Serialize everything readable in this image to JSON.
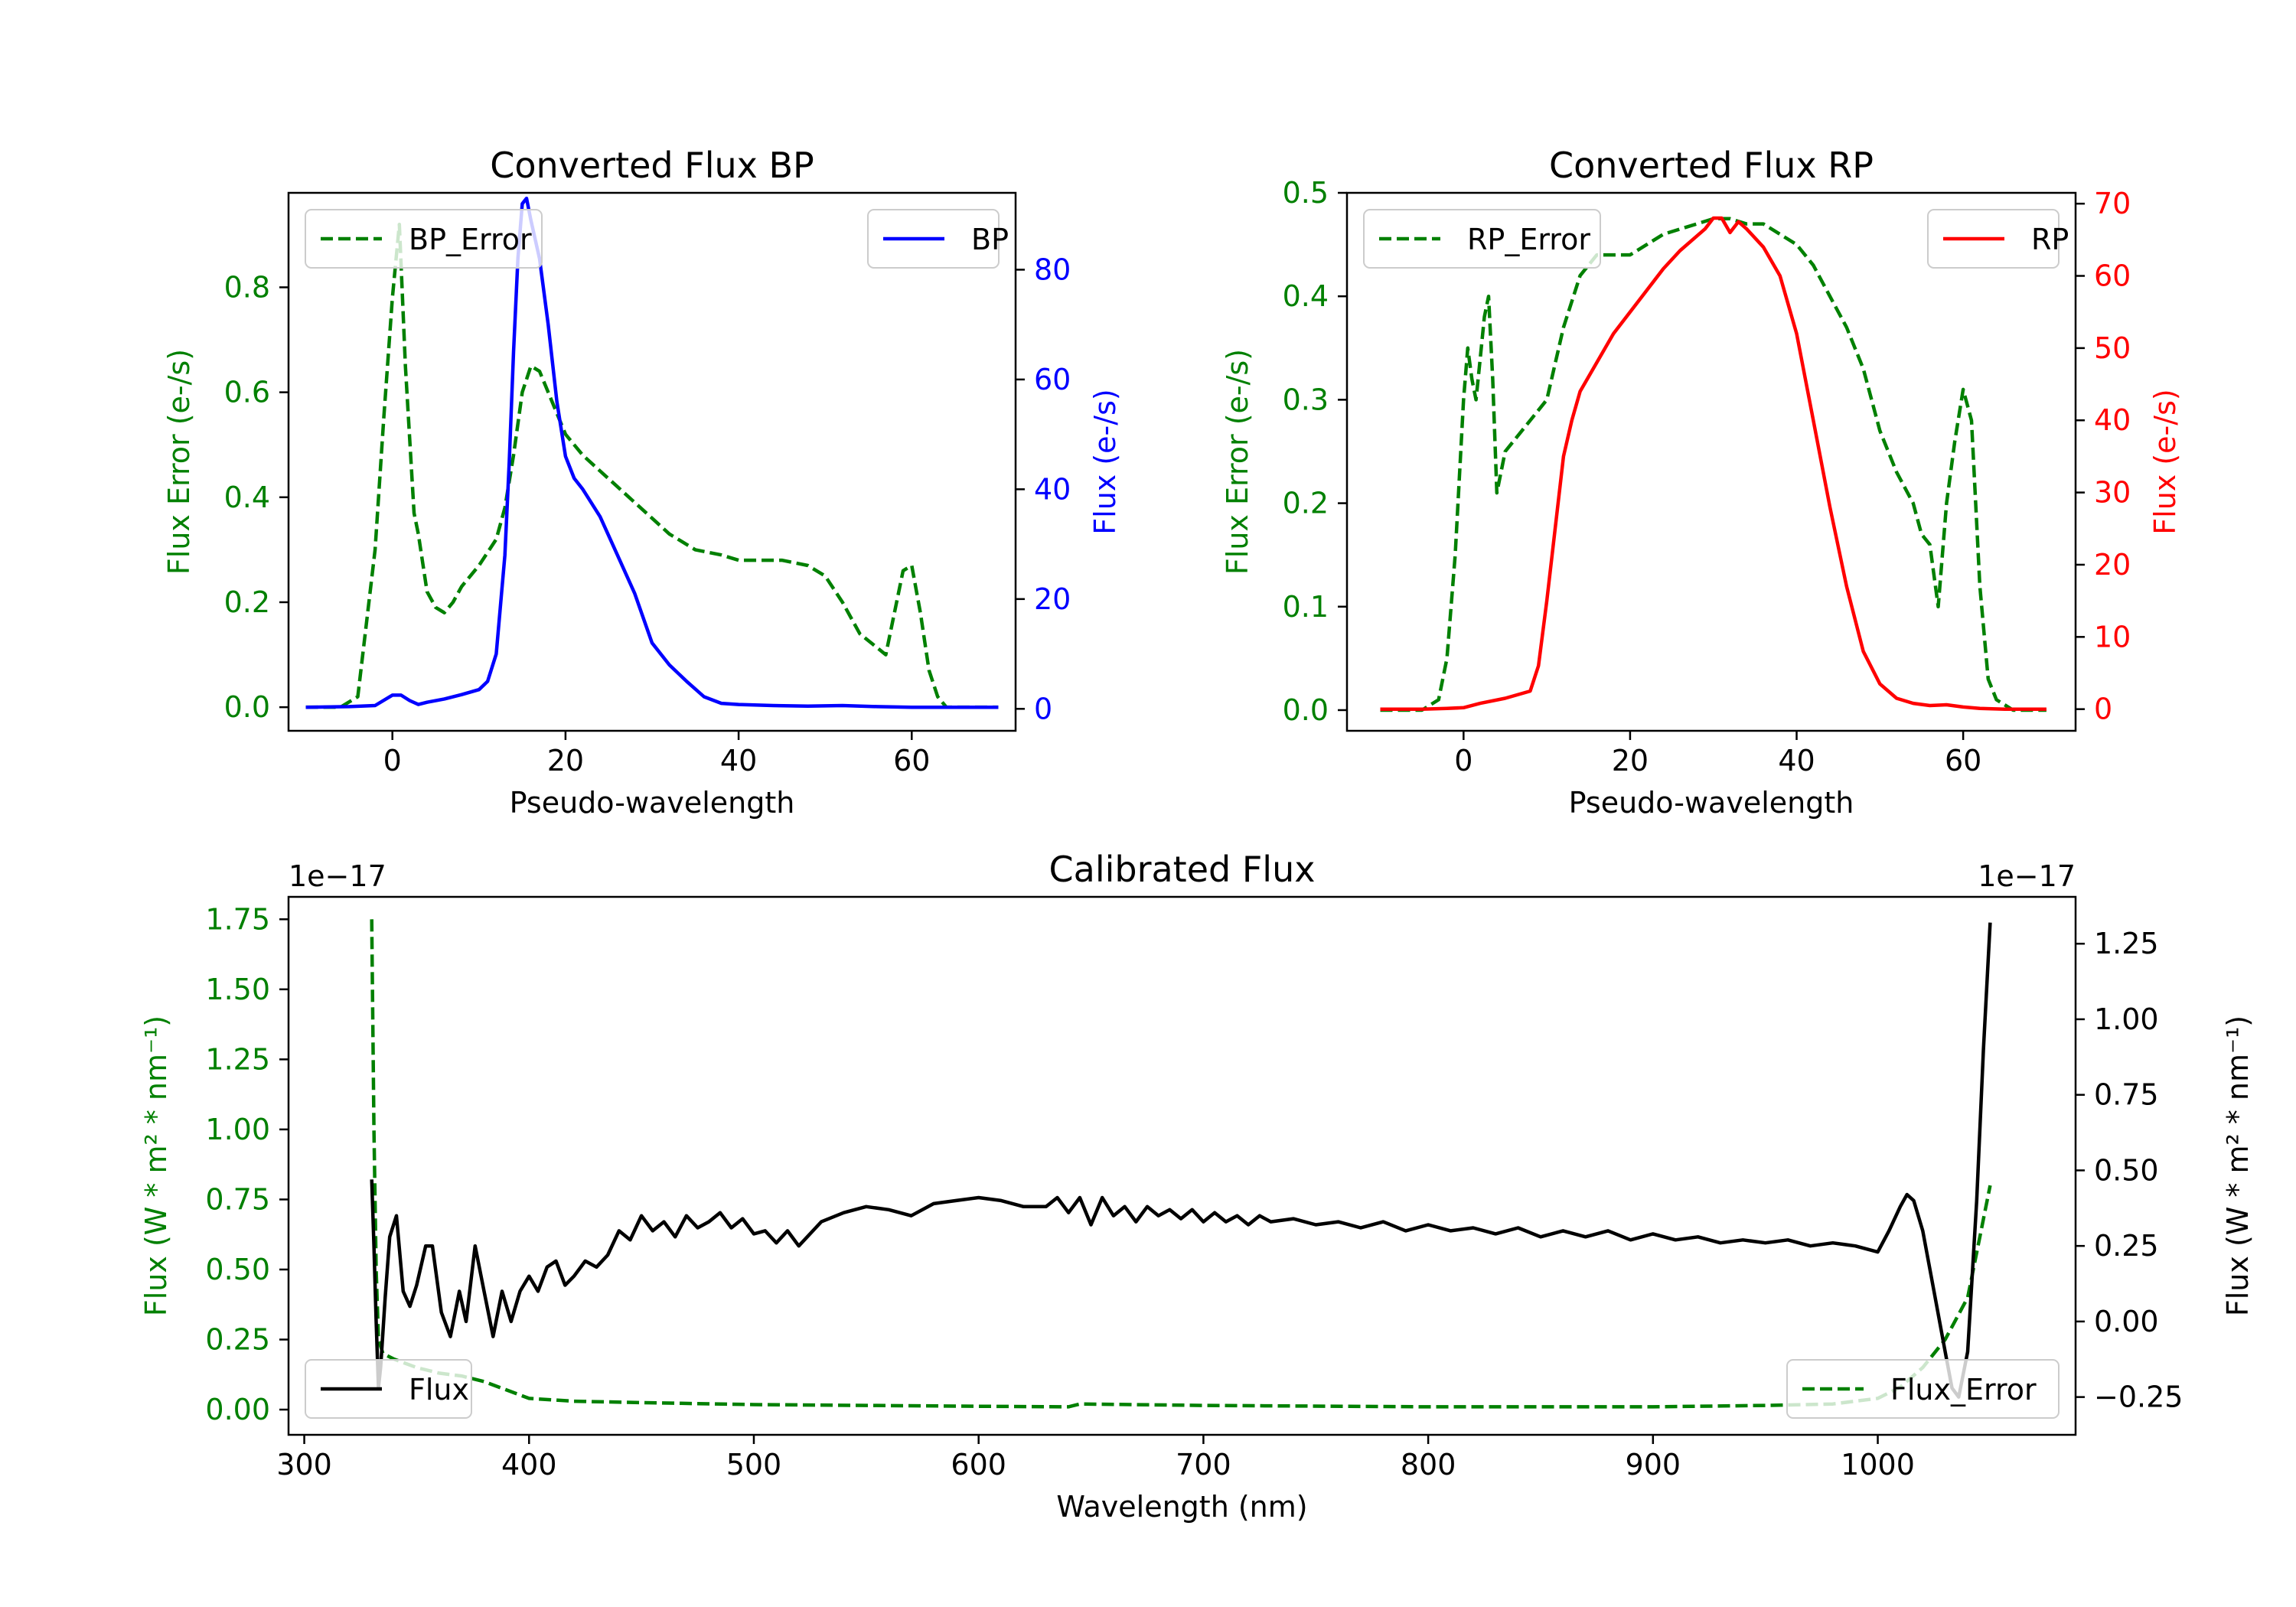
{
  "colors": {
    "flux_error": "#008000",
    "bp": "#0000ff",
    "rp": "#ff0000",
    "flux": "#000000",
    "axis": "#000000"
  },
  "chart_data": [
    {
      "id": "bp",
      "type": "line",
      "title": "Converted Flux BP",
      "xlabel": "Pseudo-wavelength",
      "xlim": [
        -12,
        72
      ],
      "xticks": [
        0,
        20,
        40,
        60
      ],
      "xtick_labels": [
        "0",
        "20",
        "40",
        "60"
      ],
      "left_axis": {
        "label": "Flux Error (e-/s)",
        "ylim": [
          -0.045,
          0.98
        ],
        "ticks": [
          0.0,
          0.2,
          0.4,
          0.6,
          0.8
        ],
        "tick_labels": [
          "0.0",
          "0.2",
          "0.4",
          "0.6",
          "0.8"
        ],
        "color": "#008000"
      },
      "right_axis": {
        "label": "Flux (e-/s)",
        "ylim": [
          -4,
          94
        ],
        "ticks": [
          0,
          20,
          40,
          60,
          80
        ],
        "tick_labels": [
          "0",
          "20",
          "40",
          "60",
          "80"
        ],
        "color": "#0000ff"
      },
      "series": [
        {
          "name": "BP_Error",
          "axis": "left",
          "style": "dashed",
          "color": "#008000",
          "legend": "BP_Error",
          "legend_pos": "upper-left",
          "x": [
            -10,
            -6,
            -4,
            -2,
            -1,
            0,
            0.8,
            1.5,
            2.5,
            3,
            4,
            5,
            6,
            7,
            8,
            10,
            12,
            13,
            14,
            15,
            16,
            17,
            18,
            20,
            22,
            24,
            26,
            28,
            30,
            32,
            35,
            38,
            40,
            43,
            45,
            48,
            50,
            52,
            54,
            57,
            58,
            59,
            60,
            61,
            62,
            63,
            64,
            66,
            70
          ],
          "y": [
            0.0,
            0.0,
            0.02,
            0.3,
            0.55,
            0.78,
            0.92,
            0.65,
            0.37,
            0.33,
            0.22,
            0.19,
            0.18,
            0.2,
            0.23,
            0.27,
            0.32,
            0.38,
            0.48,
            0.6,
            0.65,
            0.64,
            0.6,
            0.52,
            0.48,
            0.45,
            0.42,
            0.39,
            0.36,
            0.33,
            0.3,
            0.29,
            0.28,
            0.28,
            0.28,
            0.27,
            0.25,
            0.2,
            0.14,
            0.1,
            0.18,
            0.26,
            0.27,
            0.18,
            0.07,
            0.02,
            0.0,
            0.0,
            0.0
          ]
        },
        {
          "name": "BP",
          "axis": "right",
          "style": "solid",
          "color": "#0000ff",
          "legend": "BP",
          "legend_pos": "upper-right",
          "x": [
            -10,
            -5,
            -2,
            0,
            1,
            2,
            3,
            4,
            6,
            8,
            10,
            11,
            12,
            13,
            13.5,
            14,
            14.5,
            15,
            15.5,
            16,
            17,
            18,
            19,
            20,
            21,
            22,
            24,
            26,
            28,
            30,
            32,
            34,
            36,
            38,
            40,
            44,
            48,
            52,
            56,
            60,
            64,
            70
          ],
          "y": [
            0.3,
            0.4,
            0.6,
            2.5,
            2.5,
            1.5,
            0.8,
            1.2,
            1.8,
            2.6,
            3.5,
            5,
            10,
            28,
            45,
            65,
            82,
            92,
            93,
            89,
            82,
            70,
            56,
            46,
            42,
            40,
            35,
            28,
            21,
            12,
            8,
            5,
            2.2,
            1.0,
            0.8,
            0.6,
            0.5,
            0.6,
            0.4,
            0.3,
            0.3,
            0.3
          ]
        }
      ]
    },
    {
      "id": "rp",
      "type": "line",
      "title": "Converted Flux RP",
      "xlabel": "Pseudo-wavelength",
      "xlim": [
        -14,
        73.5
      ],
      "xticks": [
        0,
        20,
        40,
        60
      ],
      "xtick_labels": [
        "0",
        "20",
        "40",
        "60"
      ],
      "left_axis": {
        "label": "Flux Error (e-/s)",
        "ylim": [
          -0.02,
          0.5
        ],
        "ticks": [
          0.0,
          0.1,
          0.2,
          0.3,
          0.4,
          0.5
        ],
        "tick_labels": [
          "0.0",
          "0.1",
          "0.2",
          "0.3",
          "0.4",
          "0.5"
        ],
        "color": "#008000"
      },
      "right_axis": {
        "label": "Flux (e-/s)",
        "ylim": [
          -3,
          71.5
        ],
        "ticks": [
          0,
          10,
          20,
          30,
          40,
          50,
          60,
          70
        ],
        "tick_labels": [
          "0",
          "10",
          "20",
          "30",
          "40",
          "50",
          "60",
          "70"
        ],
        "color": "#ff0000"
      },
      "series": [
        {
          "name": "RP_Error",
          "axis": "left",
          "style": "dashed",
          "color": "#008000",
          "legend": "RP_Error",
          "legend_pos": "upper-left",
          "x": [
            -10,
            -5,
            -3,
            -2,
            -1,
            0,
            0.5,
            1,
            1.5,
            2,
            2.5,
            3,
            3.5,
            4,
            5,
            6,
            8,
            10,
            12,
            14,
            16,
            18,
            20,
            22,
            24,
            26,
            28,
            30,
            32,
            34,
            36,
            38,
            40,
            42,
            44,
            46,
            48,
            50,
            52,
            54,
            55,
            56,
            57,
            58,
            59,
            60,
            61,
            62,
            63,
            64,
            66,
            70
          ],
          "y": [
            0.0,
            0.0,
            0.01,
            0.05,
            0.15,
            0.3,
            0.35,
            0.32,
            0.3,
            0.34,
            0.38,
            0.4,
            0.32,
            0.21,
            0.25,
            0.26,
            0.28,
            0.3,
            0.37,
            0.42,
            0.44,
            0.44,
            0.44,
            0.45,
            0.46,
            0.465,
            0.47,
            0.475,
            0.475,
            0.47,
            0.47,
            0.46,
            0.45,
            0.43,
            0.4,
            0.37,
            0.33,
            0.27,
            0.23,
            0.2,
            0.17,
            0.16,
            0.1,
            0.2,
            0.26,
            0.31,
            0.28,
            0.12,
            0.03,
            0.01,
            0.0,
            0.0
          ]
        },
        {
          "name": "RP",
          "axis": "right",
          "style": "solid",
          "color": "#ff0000",
          "legend": "RP",
          "legend_pos": "upper-right",
          "x": [
            -10,
            -5,
            -2,
            0,
            2,
            5,
            8,
            9,
            10,
            11,
            12,
            13,
            14,
            16,
            18,
            20,
            22,
            24,
            26,
            28,
            29,
            30,
            31,
            32,
            33,
            34,
            36,
            38,
            40,
            42,
            44,
            46,
            48,
            50,
            52,
            54,
            56,
            58,
            60,
            62,
            65,
            70
          ],
          "y": [
            0.0,
            0.0,
            0.1,
            0.2,
            0.8,
            1.5,
            2.5,
            6,
            15,
            25,
            35,
            40,
            44,
            48,
            52,
            55,
            58,
            61,
            63.5,
            65.5,
            66.5,
            68,
            68,
            66,
            67.5,
            66.5,
            64,
            60,
            52,
            40,
            28,
            17,
            8,
            3.5,
            1.5,
            0.8,
            0.5,
            0.6,
            0.3,
            0.1,
            0.0,
            0.0
          ]
        }
      ]
    },
    {
      "id": "calibrated",
      "type": "line",
      "title": "Calibrated Flux",
      "xlabel": "Wavelength (nm)",
      "xlim": [
        293,
        1088
      ],
      "xticks": [
        300,
        400,
        500,
        600,
        700,
        800,
        900,
        1000
      ],
      "xtick_labels": [
        "300",
        "400",
        "500",
        "600",
        "700",
        "800",
        "900",
        "1000"
      ],
      "left_axis": {
        "label": "Flux (W * m² * nm⁻¹)",
        "offset_text": "1e−17",
        "ylim": [
          -0.09,
          1.83
        ],
        "ticks": [
          0.0,
          0.25,
          0.5,
          0.75,
          1.0,
          1.25,
          1.5,
          1.75
        ],
        "tick_labels": [
          "0.00",
          "0.25",
          "0.50",
          "0.75",
          "1.00",
          "1.25",
          "1.50",
          "1.75"
        ],
        "color": "#008000"
      },
      "right_axis": {
        "label": "Flux (W * m² * nm⁻¹)",
        "offset_text": "1e−17",
        "ylim": [
          -0.375,
          1.405
        ],
        "ticks": [
          -0.25,
          0.0,
          0.25,
          0.5,
          0.75,
          1.0,
          1.25
        ],
        "tick_labels": [
          "−0.25",
          "0.00",
          "0.25",
          "0.50",
          "0.75",
          "1.00",
          "1.25"
        ],
        "color": "#000000"
      },
      "series": [
        {
          "name": "Flux_Error",
          "axis": "left",
          "style": "dashed",
          "color": "#008000",
          "legend": "Flux_Error",
          "legend_pos": "lower-right",
          "x": [
            330,
            331,
            332,
            333,
            335,
            340,
            350,
            360,
            370,
            380,
            390,
            400,
            420,
            450,
            500,
            550,
            600,
            640,
            645,
            700,
            800,
            900,
            950,
            980,
            1000,
            1010,
            1020,
            1030,
            1040,
            1045,
            1050
          ],
          "y": [
            1.75,
            1.0,
            0.5,
            0.25,
            0.2,
            0.18,
            0.15,
            0.13,
            0.12,
            0.1,
            0.07,
            0.04,
            0.03,
            0.025,
            0.018,
            0.015,
            0.012,
            0.01,
            0.02,
            0.015,
            0.01,
            0.01,
            0.015,
            0.02,
            0.04,
            0.08,
            0.15,
            0.25,
            0.4,
            0.6,
            0.8
          ]
        },
        {
          "name": "Flux",
          "axis": "right",
          "style": "solid",
          "color": "#000000",
          "legend": "Flux",
          "legend_pos": "lower-left",
          "x": [
            330,
            331,
            332,
            333,
            334,
            336,
            338,
            341,
            344,
            347,
            350,
            354,
            357,
            361,
            365,
            369,
            372,
            376,
            380,
            384,
            388,
            392,
            396,
            400,
            404,
            408,
            412,
            416,
            420,
            425,
            430,
            435,
            440,
            445,
            450,
            455,
            460,
            465,
            470,
            475,
            480,
            485,
            490,
            495,
            500,
            505,
            510,
            515,
            520,
            530,
            540,
            550,
            560,
            570,
            580,
            590,
            600,
            610,
            620,
            630,
            635,
            640,
            645,
            650,
            655,
            660,
            665,
            670,
            675,
            680,
            685,
            690,
            695,
            700,
            705,
            710,
            715,
            720,
            725,
            730,
            740,
            750,
            760,
            770,
            780,
            790,
            800,
            810,
            820,
            830,
            840,
            850,
            860,
            870,
            880,
            890,
            900,
            910,
            920,
            930,
            940,
            950,
            960,
            970,
            980,
            990,
            1000,
            1005,
            1010,
            1013,
            1016,
            1020,
            1025,
            1030,
            1033,
            1036,
            1040,
            1044,
            1047,
            1050
          ],
          "y": [
            0.47,
            0.25,
            0.0,
            -0.22,
            -0.15,
            0.08,
            0.28,
            0.35,
            0.1,
            0.05,
            0.12,
            0.25,
            0.25,
            0.03,
            -0.05,
            0.1,
            0.0,
            0.25,
            0.1,
            -0.05,
            0.1,
            0.0,
            0.1,
            0.15,
            0.1,
            0.18,
            0.2,
            0.12,
            0.15,
            0.2,
            0.18,
            0.22,
            0.3,
            0.27,
            0.35,
            0.3,
            0.33,
            0.28,
            0.35,
            0.31,
            0.33,
            0.36,
            0.31,
            0.34,
            0.29,
            0.3,
            0.26,
            0.3,
            0.25,
            0.33,
            0.36,
            0.38,
            0.37,
            0.35,
            0.39,
            0.4,
            0.41,
            0.4,
            0.38,
            0.38,
            0.41,
            0.36,
            0.41,
            0.32,
            0.41,
            0.35,
            0.38,
            0.33,
            0.38,
            0.35,
            0.37,
            0.34,
            0.37,
            0.33,
            0.36,
            0.33,
            0.35,
            0.32,
            0.35,
            0.33,
            0.34,
            0.32,
            0.33,
            0.31,
            0.33,
            0.3,
            0.32,
            0.3,
            0.31,
            0.29,
            0.31,
            0.28,
            0.3,
            0.28,
            0.3,
            0.27,
            0.29,
            0.27,
            0.28,
            0.26,
            0.27,
            0.26,
            0.27,
            0.25,
            0.26,
            0.25,
            0.23,
            0.3,
            0.38,
            0.42,
            0.4,
            0.3,
            0.1,
            -0.1,
            -0.22,
            -0.25,
            -0.1,
            0.4,
            0.9,
            1.32
          ]
        }
      ]
    }
  ]
}
